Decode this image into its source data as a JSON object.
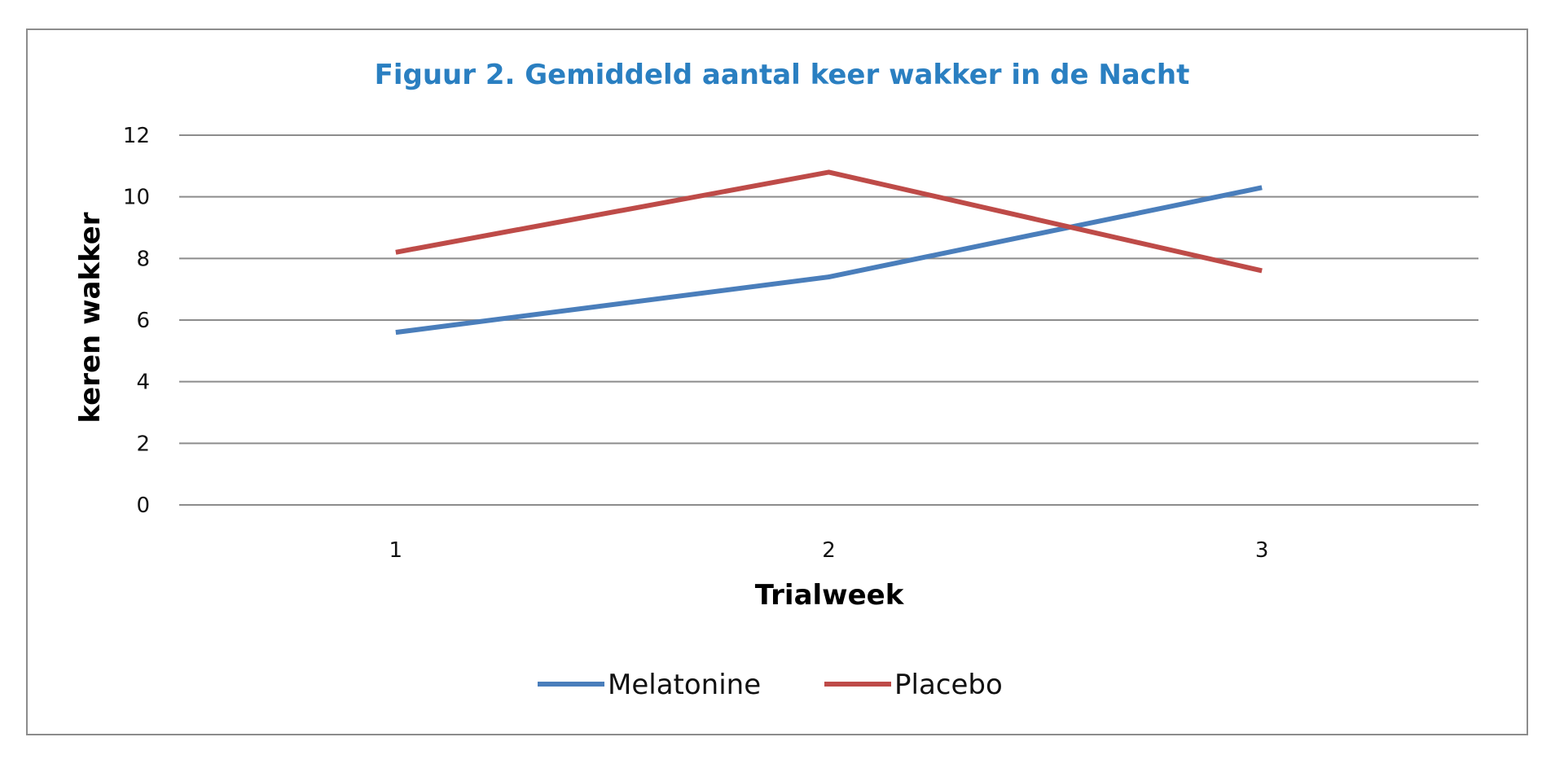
{
  "chart_data": {
    "type": "line",
    "title": "Figuur  2. Gemiddeld  aantal keer wakker  in  de Nacht",
    "xlabel": "Trialweek",
    "ylabel": "keren wakker",
    "categories": [
      "1",
      "2",
      "3"
    ],
    "ylim": [
      0,
      12
    ],
    "yticks": [
      "0",
      "2",
      "4",
      "6",
      "8",
      "10",
      "12"
    ],
    "grid": true,
    "legend_position": "bottom",
    "series": [
      {
        "name": "Melatonine",
        "color": "#4a7ebb",
        "values": [
          5.6,
          7.4,
          10.3
        ]
      },
      {
        "name": "Placebo",
        "color": "#be4b48",
        "values": [
          8.2,
          10.8,
          7.6
        ]
      }
    ]
  }
}
